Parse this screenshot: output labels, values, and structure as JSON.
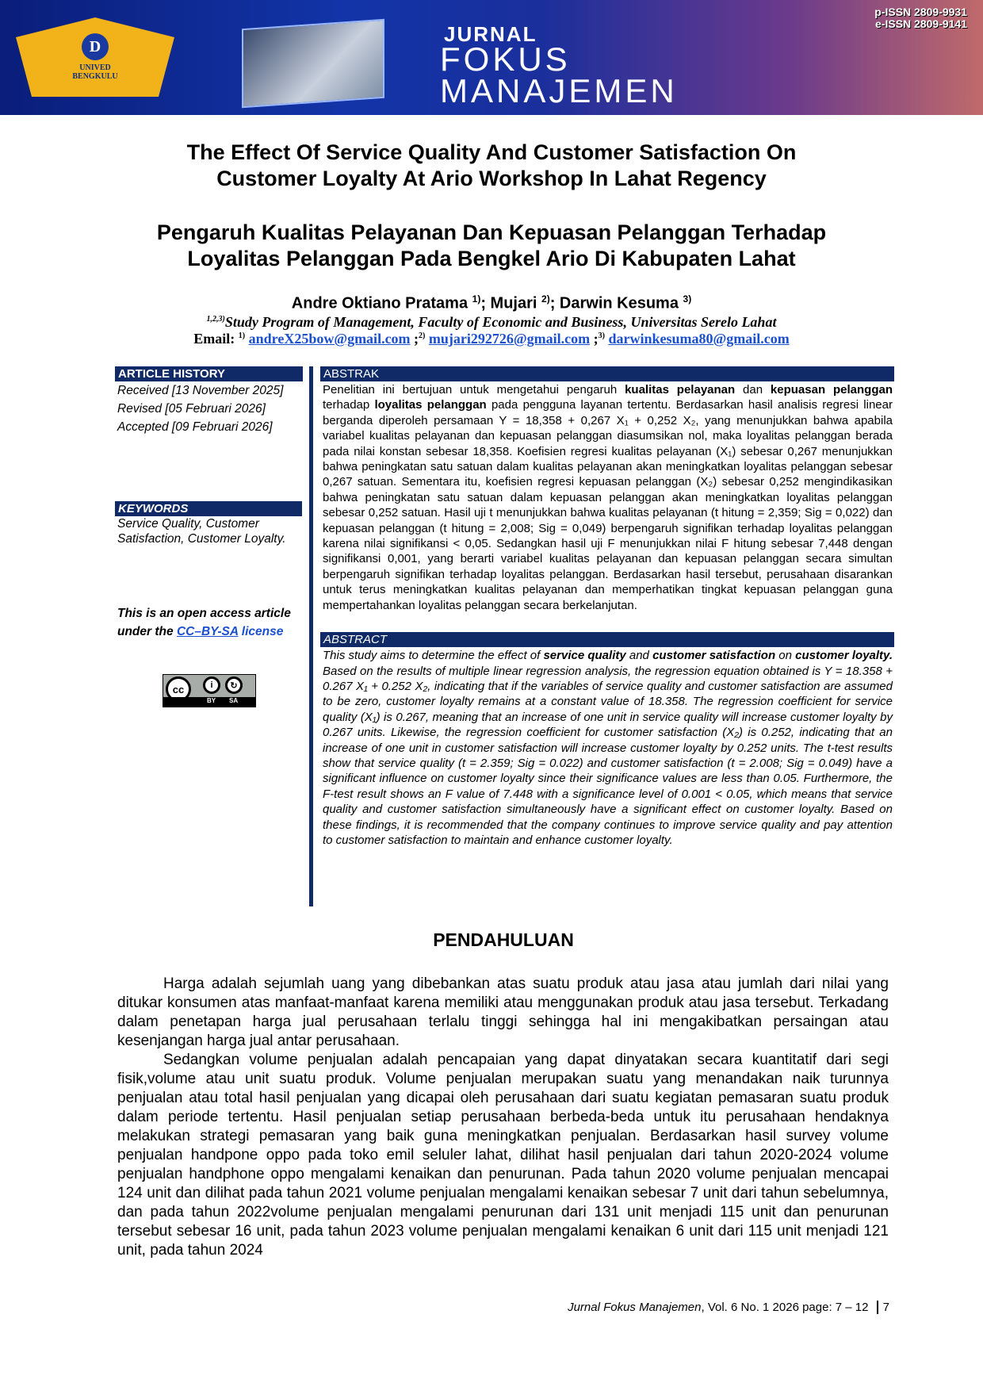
{
  "banner": {
    "journal_line1": "JURNAL",
    "journal_line2": "FOKUS",
    "journal_line3": "MANAJEMEN",
    "pissn": "p-ISSN 2809-9931",
    "eissn": "e-ISSN 2809-9141",
    "logo_text": "UNIVERSITAS DEHASEN UNIVED BENGKULU"
  },
  "title_en": [
    "The Effect Of Service Quality And Customer Satisfaction On",
    "Customer Loyalty At Ario Workshop In Lahat Regency"
  ],
  "title_id": [
    "Pengaruh Kualitas Pelayanan Dan Kepuasan Pelanggan Terhadap",
    "Loyalitas Pelanggan Pada Bengkel Ario Di Kabupaten Lahat"
  ],
  "authors": [
    {
      "name": "Andre Oktiano Pratama",
      "sup": "1)"
    },
    {
      "name": "Mujari",
      "sup": "2)"
    },
    {
      "name": "Darwin Kesuma",
      "sup": "3)"
    }
  ],
  "affiliation": {
    "sup": "1,2,3)",
    "text": "Study Program of Management, Faculty of Economic and Business, Universitas Serelo Lahat"
  },
  "email": {
    "label": "Email:",
    "items": [
      {
        "sup": "1)",
        "addr": "andreX25bow@gmail.com"
      },
      {
        "sup": "2)",
        "addr": "mujari292726@gmail.com"
      },
      {
        "sup": "3)",
        "addr": "darwinkesuma80@gmail.com"
      }
    ]
  },
  "history": {
    "header": "ARTICLE HISTORY",
    "received": "Received [13 November 2025]",
    "revised": "Revised [05 Februari 2026]",
    "accepted": "Accepted [09 Februari 2026]"
  },
  "keywords": {
    "header": "KEYWORDS",
    "text": "Service Quality, Customer Satisfaction, Customer Loyalty."
  },
  "license": {
    "text": "This is an open access article under the",
    "link": "CC–BY-SA",
    "link2": "license",
    "badge": "CC BY SA"
  },
  "abstrak": {
    "header": "ABSTRAK",
    "p1": "Penelitian ini bertujuan untuk mengetahui pengaruh ",
    "b1": "kualitas pelayanan",
    "p2": " dan ",
    "b2": "kepuasan pelanggan",
    "p3": " terhadap ",
    "b3": "loyalitas pelanggan",
    "p4": " pada pengguna layanan tertentu. Berdasarkan hasil analisis regresi linear berganda diperoleh persamaan Y = 18,358 + 0,267 X₁ + 0,252 X₂, yang menunjukkan bahwa apabila variabel kualitas pelayanan dan kepuasan pelanggan diasumsikan nol, maka loyalitas pelanggan berada pada nilai konstan sebesar 18,358. Koefisien regresi kualitas pelayanan (X₁) sebesar 0,267 menunjukkan bahwa peningkatan satu satuan dalam kualitas pelayanan akan meningkatkan loyalitas pelanggan sebesar 0,267 satuan. Sementara itu, koefisien regresi kepuasan pelanggan (X₂) sebesar 0,252 mengindikasikan bahwa peningkatan satu satuan dalam kepuasan pelanggan akan meningkatkan loyalitas pelanggan sebesar 0,252 satuan. Hasil uji t menunjukkan bahwa kualitas pelayanan (t hitung = 2,359; Sig = 0,022) dan kepuasan pelanggan (t hitung = 2,008; Sig = 0,049) berpengaruh signifikan terhadap loyalitas pelanggan karena nilai signifikansi < 0,05. Sedangkan hasil uji F menunjukkan nilai F hitung sebesar 7,448 dengan signifikansi 0,001, yang berarti variabel kualitas pelayanan dan kepuasan pelanggan secara simultan berpengaruh signifikan terhadap loyalitas pelanggan. Berdasarkan hasil tersebut, perusahaan disarankan untuk terus meningkatkan kualitas pelayanan dan memperhatikan tingkat kepuasan pelanggan guna mempertahankan loyalitas pelanggan secara berkelanjutan."
  },
  "abstract": {
    "header": "ABSTRACT",
    "p1": "This study aims to determine the effect of ",
    "b1": "service quality",
    "p2": " and ",
    "b2": "customer satisfaction",
    "p3": " on ",
    "b3": "customer loyalty.",
    "p4": " Based on the results of multiple linear regression analysis, the regression equation obtained is Y = 18.358 + 0.267 X₁ + 0.252 X₂, indicating that if the variables of service quality and customer satisfaction are assumed to be zero, customer loyalty remains at a constant value of 18.358. The regression coefficient for service quality (X₁) is 0.267, meaning that an increase of one unit in service quality will increase customer loyalty by 0.267 units. Likewise, the regression coefficient for customer satisfaction (X₂) is 0.252, indicating that an increase of one unit in customer satisfaction will increase customer loyalty by 0.252 units. The t-test results show that service quality (t = 2.359; Sig = 0.022) and customer satisfaction (t = 2.008; Sig = 0.049) have a significant influence on customer loyalty since their significance values are less than 0.05. Furthermore, the F-test result shows an F value of 7.448 with a significance level of 0.001 < 0.05, which means that service quality and customer satisfaction simultaneously have a significant effect on customer loyalty. Based on these findings, it is recommended that the company continues to improve service quality and pay attention to customer satisfaction to maintain and enhance customer loyalty."
  },
  "section_title": "PENDAHULUAN",
  "body": [
    "Harga adalah sejumlah uang yang dibebankan atas suatu produk atau jasa atau jumlah dari nilai yang ditukar konsumen atas manfaat-manfaat karena memiliki atau menggunakan produk atau jasa tersebut. Terkadang dalam  penetapan harga jual perusahaan terlalu tinggi sehingga hal ini mengakibatkan persaingan atau kesenjangan harga jual antar perusahaan.",
    "Sedangkan volume penjualan adalah pencapaian yang dapat dinyatakan secara kuantitatif dari segi fisik,volume atau unit suatu produk. Volume penjualan merupakan suatu yang menandakan naik turunnya penjualan atau total hasil penjualan yang dicapai oleh perusahaan dari suatu kegiatan pemasaran suatu produk dalam periode tertentu. Hasil penjualan setiap perusahaan berbeda-beda untuk itu perusahaan hendaknya melakukan strategi pemasaran yang baik guna meningkatkan penjualan. Berdasarkan hasil survey volume penjualan handpone oppo pada toko emil seluler lahat, dilihat hasil penjualan dari tahun 2020-2024 volume penjualan handphone oppo mengalami kenaikan dan penurunan. Pada tahun 2020 volume penjualan mencapai 124 unit dan dilihat pada tahun 2021 volume penjualan mengalami kenaikan sebesar 7 unit dari tahun sebelumnya, dan pada tahun 2022volume penjualan mengalami penurunan dari 131 unit menjadi 115 unit dan penurunan tersebut sebesar 16 unit, pada tahun 2023 volume penjualan mengalami kenaikan 6 unit dari 115 unit menjadi 121 unit, pada tahun 2024"
  ],
  "footer": {
    "journal": "Jurnal Fokus Manajemen",
    "details": ", Vol. 6  No. 1 2026  page: 7 – 12",
    "page": "7"
  }
}
